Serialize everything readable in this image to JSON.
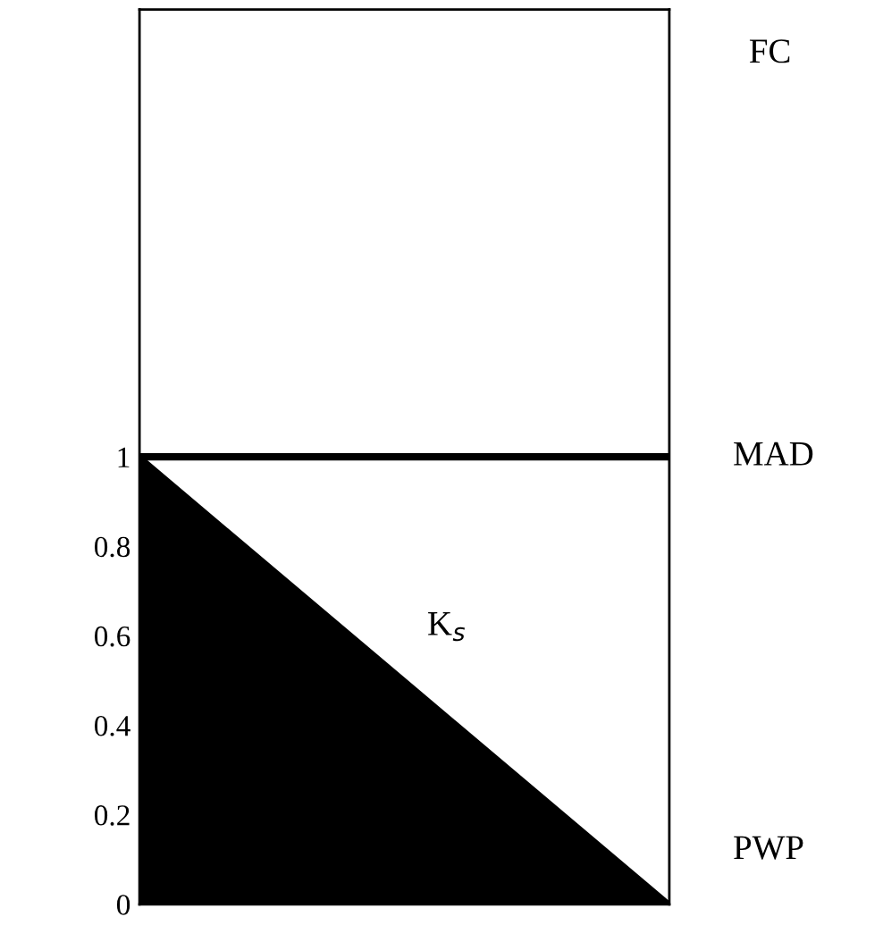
{
  "chart_data": {
    "type": "area",
    "categories": [
      null,
      null
    ],
    "ylim": [
      0,
      2
    ],
    "yticks": [
      0,
      0.2,
      0.4,
      0.6,
      0.8,
      1
    ],
    "tick_labels": "y",
    "grid": false,
    "series": [
      {
        "color": "#000000",
        "values": [
          1,
          0
        ]
      }
    ],
    "ref_lines": [
      {
        "axis": "y",
        "value": 1,
        "label": "MAD",
        "color": "#000000"
      }
    ],
    "annotations": [
      "K$_{s}$",
      "FC",
      "PWP"
    ]
  }
}
